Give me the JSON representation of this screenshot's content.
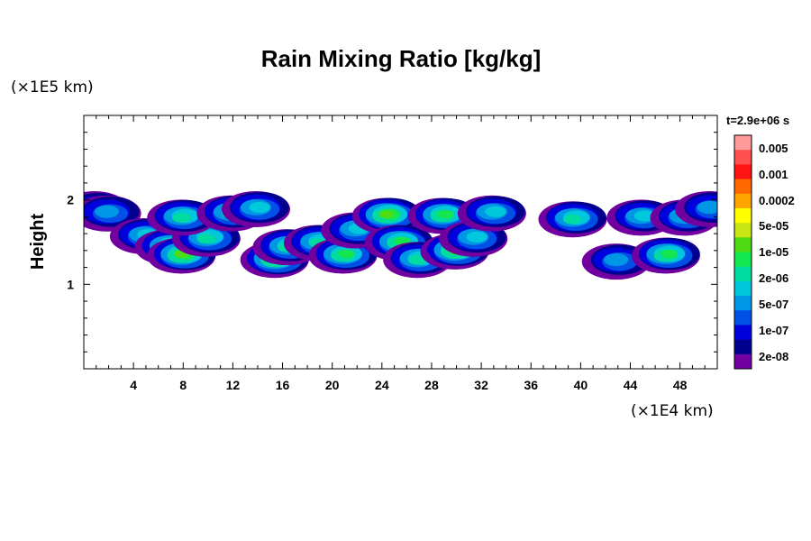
{
  "chart_data": {
    "type": "heatmap",
    "title": "Rain Mixing Ratio [kg/kg]",
    "ylabel": "Height",
    "xlabel": "",
    "x_unit": "(×1E4 km)",
    "y_unit": "(×1E5 km)",
    "time_label": "t=2.9e+06 s",
    "xlim": [
      0,
      51
    ],
    "ylim": [
      0,
      3
    ],
    "x_ticks": [
      "4",
      "8",
      "12",
      "16",
      "20",
      "24",
      "28",
      "32",
      "36",
      "40",
      "44",
      "48"
    ],
    "y_ticks": [
      "1",
      "2"
    ],
    "colorbar_labels": [
      "0.005",
      "0.001",
      "0.0002",
      "5e-05",
      "1e-05",
      "2e-06",
      "5e-07",
      "1e-07",
      "2e-08"
    ],
    "colorbar_colors": [
      "#ff9a9a",
      "#ff5050",
      "#ff1414",
      "#ff6a00",
      "#ffa500",
      "#ffff00",
      "#c8e614",
      "#50dc14",
      "#14e650",
      "#00dca0",
      "#00c8dc",
      "#0096e6",
      "#0050e6",
      "#0000dc",
      "#00008c",
      "#7000a0"
    ],
    "cells": [
      {
        "x": 1,
        "y": 1.9,
        "level": 3
      },
      {
        "x": 2,
        "y": 1.85,
        "level": 4
      },
      {
        "x": 5,
        "y": 1.58,
        "level": 5
      },
      {
        "x": 7,
        "y": 1.45,
        "level": 7
      },
      {
        "x": 8,
        "y": 1.35,
        "level": 8
      },
      {
        "x": 10,
        "y": 1.55,
        "level": 6
      },
      {
        "x": 8,
        "y": 1.8,
        "level": 6
      },
      {
        "x": 12,
        "y": 1.85,
        "level": 6
      },
      {
        "x": 14,
        "y": 1.9,
        "level": 5
      },
      {
        "x": 15.5,
        "y": 1.3,
        "level": 8
      },
      {
        "x": 16.5,
        "y": 1.45,
        "level": 6
      },
      {
        "x": 19,
        "y": 1.5,
        "level": 6
      },
      {
        "x": 21,
        "y": 1.35,
        "level": 7
      },
      {
        "x": 22,
        "y": 1.65,
        "level": 5
      },
      {
        "x": 24.5,
        "y": 1.82,
        "level": 8
      },
      {
        "x": 25.5,
        "y": 1.5,
        "level": 7
      },
      {
        "x": 27,
        "y": 1.3,
        "level": 6
      },
      {
        "x": 29,
        "y": 1.82,
        "level": 7
      },
      {
        "x": 30,
        "y": 1.4,
        "level": 8
      },
      {
        "x": 31.5,
        "y": 1.55,
        "level": 5
      },
      {
        "x": 33,
        "y": 1.85,
        "level": 5
      },
      {
        "x": 39.5,
        "y": 1.78,
        "level": 6
      },
      {
        "x": 43,
        "y": 1.28,
        "level": 4
      },
      {
        "x": 45,
        "y": 1.8,
        "level": 5
      },
      {
        "x": 47,
        "y": 1.35,
        "level": 7
      },
      {
        "x": 48.5,
        "y": 1.8,
        "level": 5
      },
      {
        "x": 50.5,
        "y": 1.9,
        "level": 4
      }
    ]
  }
}
